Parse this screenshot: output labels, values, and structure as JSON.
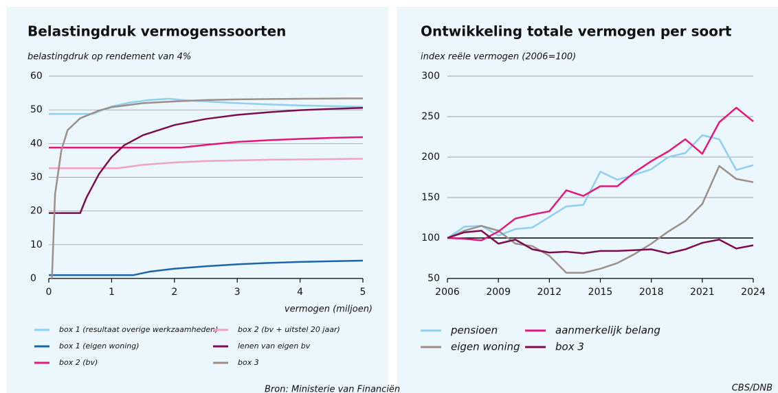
{
  "chart_data": [
    {
      "type": "line",
      "title": "Belastingdruk vermogenssoorten",
      "subtitle": "belastingdruk op rendement van 4%",
      "x_label": "vermogen (miljoen)",
      "source": "Bron: Ministerie van Financiën",
      "xlim": [
        0,
        5
      ],
      "xticks": [
        0,
        1,
        2,
        3,
        4,
        5
      ],
      "ylim": [
        0,
        60
      ],
      "yticks": [
        0,
        10,
        20,
        30,
        40,
        50,
        60
      ],
      "grid": true,
      "series": [
        {
          "name": "box 1 (resultaat overige werkzaamheden)",
          "color": "#8fd0f0",
          "x": [
            0,
            0.7,
            1,
            1.3,
            1.6,
            1.9,
            2.2,
            2.5,
            3,
            3.5,
            4,
            4.5,
            5
          ],
          "values": [
            48.8,
            48.8,
            51,
            52.2,
            52.9,
            53.3,
            52.8,
            52.5,
            52,
            51.6,
            51.3,
            51.1,
            50.9
          ]
        },
        {
          "name": "box 1 (eigen woning)",
          "color": "#1b64a8",
          "x": [
            0,
            1.35,
            1.6,
            2,
            2.5,
            3,
            3.5,
            4,
            4.5,
            5
          ],
          "values": [
            1,
            1,
            2,
            2.9,
            3.6,
            4.2,
            4.6,
            4.9,
            5.1,
            5.3
          ]
        },
        {
          "name": "box 2 (bv)",
          "color": "#e3187a",
          "x": [
            0,
            2.1,
            2.5,
            3,
            3.5,
            4,
            4.5,
            5
          ],
          "values": [
            38.8,
            38.8,
            39.6,
            40.5,
            41,
            41.4,
            41.7,
            41.9
          ]
        },
        {
          "name": "box 2 (bv + uitstel 20 jaar)",
          "color": "#f2a1c0",
          "x": [
            0,
            1.1,
            1.5,
            2,
            2.5,
            3,
            3.5,
            4,
            4.5,
            5
          ],
          "values": [
            32.7,
            32.7,
            33.7,
            34.4,
            34.8,
            35,
            35.2,
            35.3,
            35.4,
            35.5
          ]
        },
        {
          "name": "lenen van eigen bv",
          "color": "#7b0d4f",
          "x": [
            0,
            0.5,
            0.6,
            0.8,
            1,
            1.2,
            1.5,
            2,
            2.5,
            3,
            3.5,
            4,
            4.5,
            5
          ],
          "values": [
            19.4,
            19.4,
            24,
            31,
            36,
            39.5,
            42.5,
            45.5,
            47.3,
            48.5,
            49.3,
            49.9,
            50.3,
            50.6
          ]
        },
        {
          "name": "box 3",
          "color": "#9b8f88",
          "x": [
            0.05,
            0.1,
            0.2,
            0.3,
            0.5,
            0.8,
            1,
            1.5,
            2,
            2.5,
            3,
            4,
            5
          ],
          "values": [
            0,
            25,
            38,
            44,
            47.5,
            49.8,
            50.8,
            52,
            52.5,
            52.9,
            53.1,
            53.3,
            53.4
          ]
        }
      ]
    },
    {
      "type": "line",
      "title": "Ontwikkeling totale vermogen per soort",
      "subtitle": "index reële vermogen (2006=100)",
      "source": "CBS/DNB",
      "x": [
        2006,
        2007,
        2008,
        2009,
        2010,
        2011,
        2012,
        2013,
        2014,
        2015,
        2016,
        2017,
        2018,
        2019,
        2020,
        2021,
        2022,
        2023,
        2024
      ],
      "xlim": [
        2006,
        2024
      ],
      "xticks": [
        2006,
        2009,
        2012,
        2015,
        2018,
        2021,
        2024
      ],
      "ylim": [
        50,
        300
      ],
      "yticks": [
        50,
        100,
        150,
        200,
        250,
        300
      ],
      "reference_line": 100,
      "grid": true,
      "series": [
        {
          "name": "pensioen",
          "color": "#8fd0f0",
          "values": [
            100,
            114,
            115,
            103,
            111,
            113,
            126,
            139,
            141,
            182,
            172,
            178,
            185,
            200,
            205,
            227,
            222,
            184,
            190
          ]
        },
        {
          "name": "eigen woning",
          "color": "#9b8f88",
          "values": [
            100,
            109,
            115,
            109,
            93,
            90,
            78,
            57,
            57,
            62,
            69,
            80,
            93,
            108,
            121,
            142,
            189,
            173,
            169
          ]
        },
        {
          "name": "aanmerkelijk belang",
          "color": "#e3187a",
          "values": [
            100,
            99,
            97,
            108,
            124,
            129,
            133,
            159,
            152,
            164,
            164,
            181,
            195,
            207,
            222,
            204,
            243,
            261,
            244
          ]
        },
        {
          "name": "box 3",
          "color": "#7b0d4f",
          "values": [
            100,
            107,
            109,
            93,
            98,
            86,
            82,
            83,
            81,
            84,
            84,
            85,
            86,
            81,
            86,
            94,
            98,
            87,
            91
          ]
        }
      ]
    }
  ]
}
